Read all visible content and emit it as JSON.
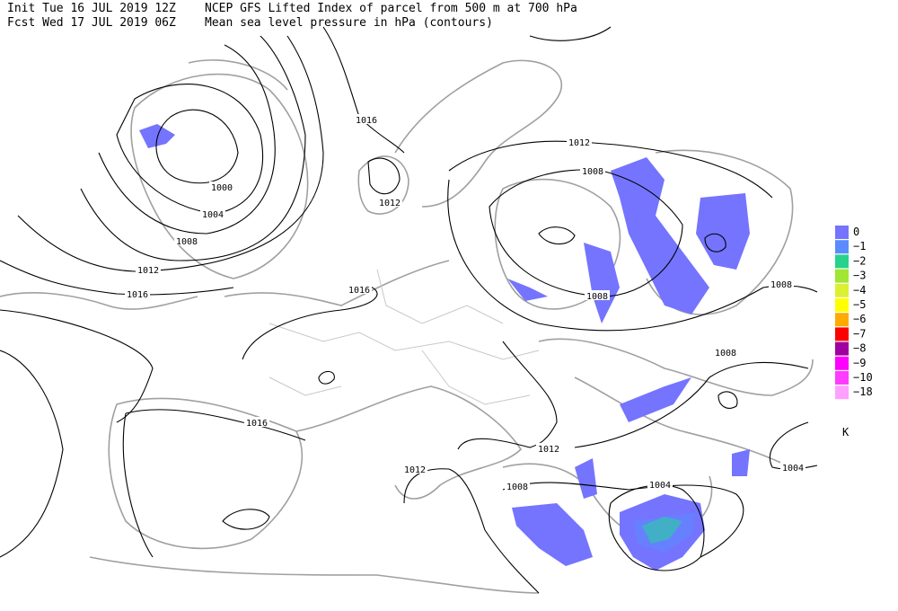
{
  "header": {
    "init": "Init  Tue 16 JUL 2019 12Z",
    "title": "NCEP GFS Lifted Index of parcel from 500 m at 700 hPa",
    "forecast": "Fcst Wed 17 JUL 2019 06Z",
    "subtitle": "Mean sea level pressure in hPa (contours)"
  },
  "contour_labels": [
    "1016",
    "1000",
    "1004",
    "1008",
    "1012",
    "1016",
    "1012",
    "1016",
    "1012",
    "1008",
    "1008",
    "1008",
    "1008",
    "1016",
    "1012",
    "1012",
    "1008",
    "1004",
    "1004"
  ],
  "legend": {
    "items": [
      {
        "label": "0",
        "color": "#7474ff"
      },
      {
        "label": "−1",
        "color": "#5a8cff"
      },
      {
        "label": "−2",
        "color": "#28d28c"
      },
      {
        "label": "−3",
        "color": "#a0e632"
      },
      {
        "label": "−4",
        "color": "#dcf032"
      },
      {
        "label": "−5",
        "color": "#ffff00"
      },
      {
        "label": "−6",
        "color": "#ffaa00"
      },
      {
        "label": "−7",
        "color": "#ff0000"
      },
      {
        "label": "−8",
        "color": "#a000a0"
      },
      {
        "label": "−9",
        "color": "#ff00ff"
      },
      {
        "label": "−10",
        "color": "#ff3cff"
      },
      {
        "label": "−18",
        "color": "#ffa0ff"
      }
    ],
    "unit": "K"
  }
}
